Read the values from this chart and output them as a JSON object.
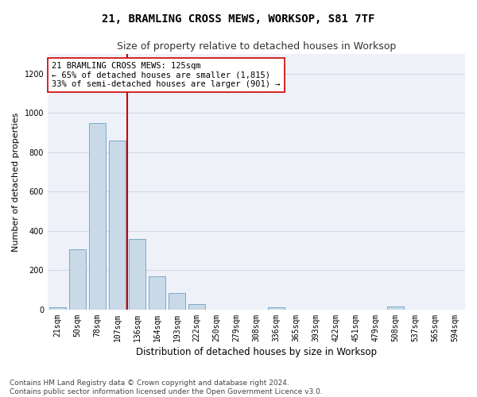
{
  "title_line1": "21, BRAMLING CROSS MEWS, WORKSOP, S81 7TF",
  "title_line2": "Size of property relative to detached houses in Worksop",
  "xlabel": "Distribution of detached houses by size in Worksop",
  "ylabel": "Number of detached properties",
  "bar_color": "#c9d9e8",
  "bar_edge_color": "#7aaac8",
  "bar_categories": [
    "21sqm",
    "50sqm",
    "78sqm",
    "107sqm",
    "136sqm",
    "164sqm",
    "193sqm",
    "222sqm",
    "250sqm",
    "279sqm",
    "308sqm",
    "336sqm",
    "365sqm",
    "393sqm",
    "422sqm",
    "451sqm",
    "479sqm",
    "508sqm",
    "537sqm",
    "565sqm",
    "594sqm"
  ],
  "bar_values": [
    13,
    305,
    950,
    862,
    358,
    170,
    85,
    28,
    0,
    0,
    0,
    13,
    0,
    0,
    0,
    0,
    0,
    15,
    0,
    0,
    0
  ],
  "ylim": [
    0,
    1300
  ],
  "yticks": [
    0,
    200,
    400,
    600,
    800,
    1000,
    1200
  ],
  "annotation_text": "21 BRAMLING CROSS MEWS: 125sqm\n← 65% of detached houses are smaller (1,815)\n33% of semi-detached houses are larger (901) →",
  "vline_x": 3.5,
  "vline_color": "#cc0000",
  "annotation_box_color": "#ffffff",
  "annotation_box_edge": "#cc0000",
  "grid_color": "#d0d8e8",
  "bg_color": "#eef2f8",
  "footer_text": "Contains HM Land Registry data © Crown copyright and database right 2024.\nContains public sector information licensed under the Open Government Licence v3.0.",
  "title_fontsize": 10,
  "subtitle_fontsize": 9,
  "tick_fontsize": 7,
  "ylabel_fontsize": 8,
  "xlabel_fontsize": 8.5,
  "footer_fontsize": 6.5,
  "annotation_fontsize": 7.5
}
